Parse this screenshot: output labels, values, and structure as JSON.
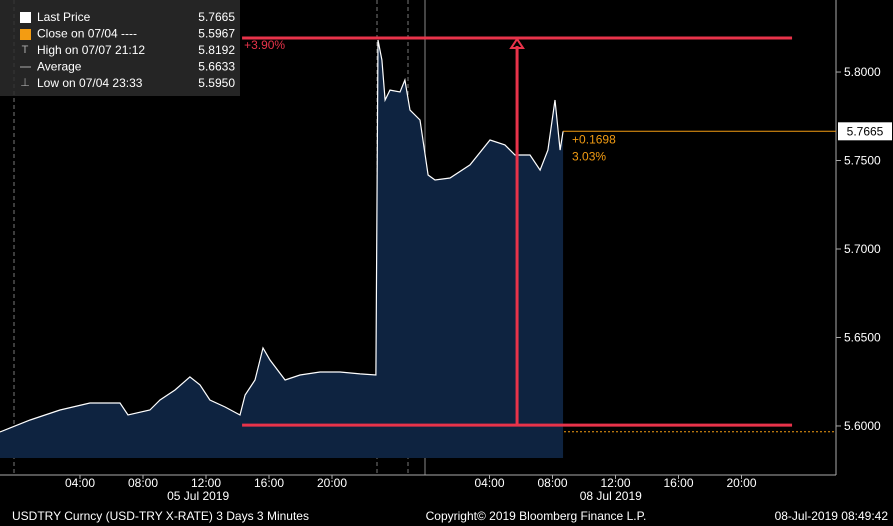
{
  "chart_data": {
    "type": "area",
    "series": [
      {
        "name": "Last Price",
        "color": "#ffffff",
        "fill": "#0e2340",
        "x": [
          -1.08,
          -0.44,
          0.83,
          2.73,
          4.63,
          6.54,
          7.05,
          8.44,
          9.08,
          10.03,
          10.98,
          11.62,
          12.25,
          13.21,
          14.16,
          14.48,
          15.11,
          15.62,
          16.06,
          17.02,
          17.97,
          19.24,
          20.51,
          21.78,
          22.79,
          22.92,
          23.17,
          23.37,
          23.68,
          24.32,
          24.63,
          24.95,
          25.59,
          26.1,
          26.54,
          27.49,
          28.76,
          30.03,
          30.98,
          31.62,
          32.57,
          33.21,
          33.71,
          34.16,
          34.48,
          34.67
        ],
        "values": [
          5.5966,
          5.5989,
          5.6034,
          5.609,
          5.613,
          5.613,
          5.6062,
          5.609,
          5.6147,
          5.6203,
          5.6277,
          5.6232,
          5.6147,
          5.6107,
          5.6062,
          5.6175,
          5.626,
          5.6441,
          5.6373,
          5.626,
          5.6288,
          5.6305,
          5.6305,
          5.6294,
          5.6288,
          5.8181,
          5.8068,
          5.7842,
          5.7898,
          5.7887,
          5.7955,
          5.7785,
          5.7729,
          5.7418,
          5.739,
          5.7401,
          5.7475,
          5.7616,
          5.7588,
          5.7531,
          5.7531,
          5.7446,
          5.7559,
          5.7842,
          5.7559,
          5.7665
        ]
      }
    ],
    "xlim": [
      -1.08,
      52.0
    ],
    "ylim": [
      5.5819,
      5.8407
    ],
    "xticks": [
      {
        "value": 4,
        "label": "04:00"
      },
      {
        "value": 8,
        "label": "08:00"
      },
      {
        "value": 12,
        "label": "12:00"
      },
      {
        "value": 16,
        "label": "16:00"
      },
      {
        "value": 20,
        "label": "20:00"
      },
      {
        "value": 30,
        "label": "04:00"
      },
      {
        "value": 34,
        "label": "08:00"
      },
      {
        "value": 38,
        "label": "12:00"
      },
      {
        "value": 42,
        "label": "16:00"
      },
      {
        "value": 46,
        "label": "20:00"
      }
    ],
    "date_labels": [
      {
        "value": 11.5,
        "label": "05 Jul 2019"
      },
      {
        "value": 37.7,
        "label": "08 Jul 2019"
      }
    ],
    "yticks": [
      {
        "value": 5.6,
        "label": "5.6000"
      },
      {
        "value": 5.65,
        "label": "5.6500"
      },
      {
        "value": 5.7,
        "label": "5.7000"
      },
      {
        "value": 5.75,
        "label": "5.7500"
      },
      {
        "value": 5.8,
        "label": "5.8000"
      }
    ],
    "legend": {
      "labels": [
        "Last Price",
        "Close on 07/04 ----",
        "High on 07/07 21:12",
        "Average",
        "Low on 07/04 23:33"
      ],
      "values": [
        5.7665,
        5.5967,
        5.8192,
        5.6633,
        5.595
      ],
      "value_labels": [
        "5.7665",
        "5.5967",
        "5.8192",
        "5.6633",
        "5.5950"
      ]
    },
    "change": {
      "values": [
        0.1698,
        3.03
      ],
      "value_labels": [
        "+0.1698",
        "3.03%"
      ],
      "color": "#f39c12"
    },
    "annotation": {
      "label": "+3.90%",
      "from": 5.6005,
      "to": 5.8192,
      "x_range": [
        14.29,
        49.21
      ],
      "arrow_x": 31.75,
      "color": "#e8334a"
    },
    "footer": {
      "left": "USDTRY Curncy (USD-TRY X-RATE) 3 Days 3 Minutes",
      "center": "Copyright© 2019 Bloomberg Finance L.P.",
      "right": "08-Jul-2019 08:49:42"
    }
  }
}
